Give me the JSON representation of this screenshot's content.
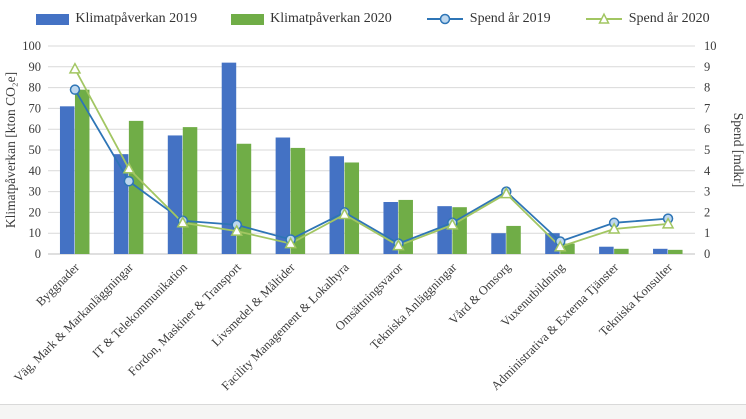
{
  "legend": [
    {
      "label": "Klimatpåverkan 2019",
      "type": "bar",
      "color": "#4472C4"
    },
    {
      "label": "Klimatpåverkan 2020",
      "type": "bar",
      "color": "#70AD47"
    },
    {
      "label": "Spend år 2019",
      "type": "line",
      "marker": "circle",
      "color": "#2E75B6",
      "marker_fill": "#BDD7EE"
    },
    {
      "label": "Spend år 2020",
      "type": "line",
      "marker": "triangle",
      "color": "#A2C662",
      "marker_fill": "#FFFFFF"
    }
  ],
  "chart_data": {
    "type": "bar",
    "subtype": "clustered-bar-with-lines-dual-axis",
    "categories": [
      "Byggnader",
      "Väg, Mark & Markanläggningar",
      "IT & Telekommunikation",
      "Fordon, Maskiner & Transport",
      "Livsmedel & Måltider",
      "Facility Management & Lokalhyra",
      "Omsättningsvaror",
      "Tekniska Anläggningar",
      "Vård & Omsorg",
      "Vuxenutbildning",
      "Administrativa & Externa Tjänster",
      "Tekniska Konsulter"
    ],
    "series": [
      {
        "name": "Klimatpåverkan 2019",
        "type": "bar",
        "axis": "left",
        "color": "#4472C4",
        "values": [
          71,
          48,
          57,
          92,
          56,
          47,
          25,
          23,
          10,
          10,
          3.5,
          2.5
        ]
      },
      {
        "name": "Klimatpåverkan 2020",
        "type": "bar",
        "axis": "left",
        "color": "#70AD47",
        "values": [
          79,
          64,
          61,
          53,
          51,
          44,
          26,
          22.5,
          13.5,
          5,
          2.5,
          2
        ]
      },
      {
        "name": "Spend år 2019",
        "type": "line",
        "axis": "right",
        "color": "#2E75B6",
        "marker": "circle",
        "marker_fill": "#BDD7EE",
        "values": [
          7.9,
          3.5,
          1.6,
          1.4,
          0.7,
          2.0,
          0.5,
          1.5,
          3.0,
          0.6,
          1.5,
          1.7
        ]
      },
      {
        "name": "Spend år 2020",
        "type": "line",
        "axis": "right",
        "color": "#A2C662",
        "marker": "triangle",
        "marker_fill": "#FFFFFF",
        "values": [
          8.9,
          4.1,
          1.5,
          1.1,
          0.5,
          1.9,
          0.4,
          1.4,
          2.9,
          0.35,
          1.2,
          1.45
        ]
      }
    ],
    "left_axis": {
      "label": "Klimatpåverkan [kton CO₂e]",
      "min": 0,
      "max": 100,
      "step": 10
    },
    "right_axis": {
      "label": "Spend [mdkr]",
      "min": 0,
      "max": 10,
      "step": 1
    },
    "grid": true,
    "grid_color": "#D9D9D9",
    "legend_position": "top",
    "x_label_rotation_deg": -45
  }
}
